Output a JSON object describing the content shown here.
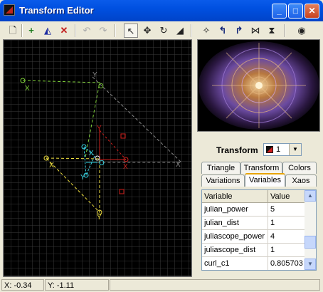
{
  "window": {
    "title": "Transform Editor",
    "minimize": "_",
    "maximize": "□",
    "close": "✕"
  },
  "toolbar": {
    "tools": [
      {
        "name": "new-icon",
        "glyph": "🗋"
      },
      {
        "name": "add-triangle-icon",
        "glyph": "+"
      },
      {
        "name": "duplicate-triangle-icon",
        "glyph": "◭"
      },
      {
        "name": "delete-triangle-icon",
        "glyph": "✕"
      },
      {
        "name": "undo-icon",
        "glyph": "↶"
      },
      {
        "name": "redo-icon",
        "glyph": "↷"
      },
      {
        "name": "select-arrow-icon",
        "glyph": "↖"
      },
      {
        "name": "move-icon",
        "glyph": "✥"
      },
      {
        "name": "rotate-icon",
        "glyph": "↻"
      },
      {
        "name": "scale-icon",
        "glyph": "◢"
      },
      {
        "name": "reset-icon",
        "glyph": "✧"
      },
      {
        "name": "rotate-left-icon",
        "glyph": "↰"
      },
      {
        "name": "rotate-right-icon",
        "glyph": "↱"
      },
      {
        "name": "flip-horizontal-icon",
        "glyph": "⋈"
      },
      {
        "name": "flip-vertical-icon",
        "glyph": "⧗"
      },
      {
        "name": "preview-eye-icon",
        "glyph": "◉"
      }
    ]
  },
  "transform": {
    "label": "Transform",
    "value": "1"
  },
  "tabs_row1": [
    "Triangle",
    "Transform",
    "Colors"
  ],
  "tabs_row2": [
    "Variations",
    "Variables",
    "Xaos"
  ],
  "active_tab": "Variables",
  "variables": {
    "headers": [
      "Variable",
      "Value"
    ],
    "rows": [
      {
        "name": "julian_power",
        "value": "5"
      },
      {
        "name": "julian_dist",
        "value": "1"
      },
      {
        "name": "juliascope_power",
        "value": "4"
      },
      {
        "name": "juliascope_dist",
        "value": "1"
      },
      {
        "name": "curl_c1",
        "value": "0.805703"
      }
    ]
  },
  "status": {
    "x": "X: -0.34",
    "y": "Y: -1.11"
  },
  "triangle_labels": {
    "x": "X",
    "y": "Y",
    "o": "O"
  },
  "colors": {
    "titlebar": "#0054E3",
    "triangle_green": "#7fd13a",
    "triangle_yellow": "#f0e040",
    "triangle_red": "#d0201c",
    "triangle_cyan": "#39d6e6",
    "triangle_gray": "#909090"
  }
}
